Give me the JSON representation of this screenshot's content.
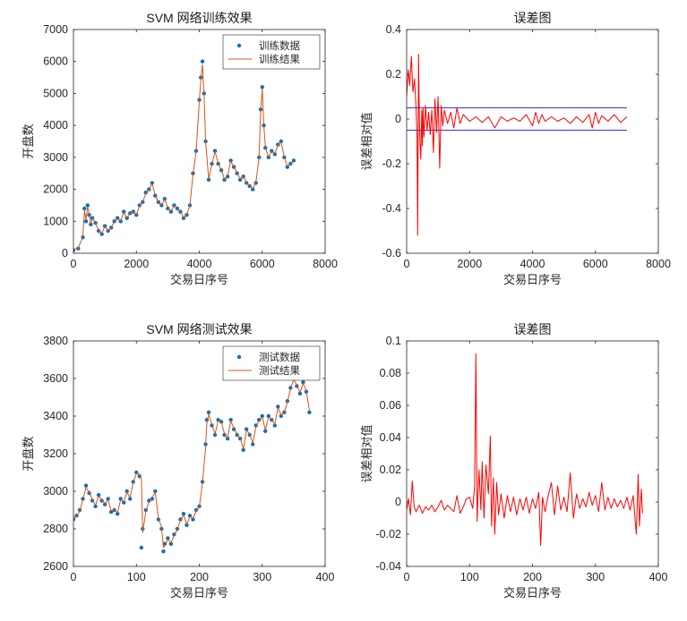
{
  "chart_data": [
    {
      "id": "train-fit",
      "type": "line",
      "title": "SVM 网络训练效果",
      "xlabel": "交易日序号",
      "ylabel": "开盘数",
      "xlim": [
        0,
        8000
      ],
      "ylim": [
        0,
        7000
      ],
      "xticks": [
        0,
        2000,
        4000,
        6000,
        8000
      ],
      "yticks": [
        0,
        1000,
        2000,
        3000,
        4000,
        5000,
        6000,
        7000
      ],
      "grid": false,
      "legend": "top-right",
      "series": [
        {
          "name": "训练数据",
          "style": "markers",
          "color": "#0072bd",
          "x": [
            0,
            150,
            300,
            350,
            400,
            450,
            500,
            550,
            600,
            700,
            800,
            900,
            1000,
            1100,
            1200,
            1300,
            1400,
            1500,
            1600,
            1700,
            1800,
            1900,
            2000,
            2100,
            2200,
            2300,
            2400,
            2500,
            2600,
            2700,
            2800,
            2900,
            3000,
            3100,
            3200,
            3300,
            3400,
            3500,
            3600,
            3700,
            3800,
            3900,
            4000,
            4050,
            4100,
            4150,
            4200,
            4300,
            4400,
            4500,
            4600,
            4700,
            4800,
            4900,
            5000,
            5100,
            5200,
            5300,
            5400,
            5500,
            5600,
            5700,
            5800,
            5900,
            5950,
            6000,
            6050,
            6100,
            6200,
            6300,
            6400,
            6500,
            6600,
            6700,
            6800,
            6900,
            7000
          ],
          "y": [
            100,
            150,
            500,
            1400,
            1000,
            1500,
            1200,
            900,
            1100,
            950,
            700,
            600,
            850,
            700,
            800,
            1000,
            1100,
            1000,
            1300,
            1100,
            1250,
            1300,
            1200,
            1500,
            1600,
            1900,
            2000,
            2200,
            1800,
            1600,
            1500,
            1700,
            1400,
            1300,
            1500,
            1400,
            1300,
            1100,
            1200,
            1500,
            2500,
            3200,
            4800,
            5500,
            6000,
            5000,
            3500,
            2300,
            2800,
            3200,
            2800,
            2600,
            2300,
            2400,
            2900,
            2700,
            2500,
            2300,
            2400,
            2200,
            2100,
            2000,
            2200,
            3000,
            4500,
            5200,
            4000,
            3300,
            3000,
            3200,
            3100,
            3400,
            3500,
            3000,
            2700,
            2800,
            2900
          ]
        },
        {
          "name": "训练结果",
          "style": "line",
          "color": "#d95319",
          "x": [
            0,
            150,
            300,
            350,
            400,
            450,
            500,
            550,
            600,
            700,
            800,
            900,
            1000,
            1100,
            1200,
            1300,
            1400,
            1500,
            1600,
            1700,
            1800,
            1900,
            2000,
            2100,
            2200,
            2300,
            2400,
            2500,
            2600,
            2700,
            2800,
            2900,
            3000,
            3100,
            3200,
            3300,
            3400,
            3500,
            3600,
            3700,
            3800,
            3900,
            4000,
            4050,
            4100,
            4150,
            4200,
            4300,
            4400,
            4500,
            4600,
            4700,
            4800,
            4900,
            5000,
            5100,
            5200,
            5300,
            5400,
            5500,
            5600,
            5700,
            5800,
            5900,
            5950,
            6000,
            6050,
            6100,
            6200,
            6300,
            6400,
            6500,
            6600,
            6700,
            6800,
            6900,
            7000
          ],
          "y": [
            120,
            160,
            520,
            1350,
            1050,
            1450,
            1220,
            920,
            1080,
            960,
            720,
            620,
            840,
            710,
            810,
            990,
            1090,
            1010,
            1280,
            1110,
            1240,
            1290,
            1210,
            1480,
            1590,
            1880,
            1990,
            2180,
            1820,
            1610,
            1510,
            1690,
            1410,
            1310,
            1490,
            1410,
            1310,
            1120,
            1210,
            1490,
            2480,
            3180,
            4750,
            5450,
            5900,
            5000,
            3520,
            2320,
            2790,
            3180,
            2810,
            2610,
            2320,
            2410,
            2880,
            2710,
            2510,
            2320,
            2410,
            2210,
            2110,
            2010,
            2210,
            2980,
            4450,
            5150,
            4020,
            3320,
            3010,
            3190,
            3110,
            3390,
            3480,
            3010,
            2720,
            2790,
            2890
          ]
        }
      ]
    },
    {
      "id": "train-error",
      "type": "line",
      "title": "误差图",
      "xlabel": "交易日序号",
      "ylabel": "误差相对值",
      "xlim": [
        0,
        8000
      ],
      "ylim": [
        -0.6,
        0.4
      ],
      "xticks": [
        0,
        2000,
        4000,
        6000,
        8000
      ],
      "yticks": [
        -0.6,
        -0.4,
        -0.2,
        0,
        0.2,
        0.4
      ],
      "grid": false,
      "legend": "none",
      "reference_lines": {
        "values": [
          0.05,
          -0.05
        ],
        "x_range": [
          0,
          7000
        ],
        "color": "#3333dd"
      },
      "series": [
        {
          "style": "line",
          "color": "#ff0000",
          "x": [
            0,
            50,
            100,
            150,
            200,
            250,
            300,
            330,
            350,
            380,
            400,
            420,
            450,
            480,
            500,
            520,
            550,
            600,
            650,
            700,
            750,
            800,
            850,
            900,
            950,
            1000,
            1050,
            1100,
            1150,
            1200,
            1300,
            1400,
            1500,
            1600,
            1700,
            1800,
            2000,
            2200,
            2400,
            2600,
            2800,
            3000,
            3200,
            3400,
            3600,
            3800,
            4000,
            4100,
            4200,
            4300,
            4400,
            4600,
            4800,
            5000,
            5200,
            5400,
            5600,
            5800,
            5900,
            6000,
            6100,
            6200,
            6400,
            6600,
            6800,
            7000
          ],
          "y": [
            0.1,
            0.22,
            0.15,
            0.28,
            0.12,
            0.18,
            0.05,
            -0.08,
            -0.52,
            0.29,
            0.02,
            -0.1,
            -0.18,
            0.04,
            -0.12,
            0.05,
            -0.08,
            0.06,
            -0.05,
            0.03,
            -0.07,
            0.04,
            -0.15,
            0.09,
            -0.06,
            0.1,
            -0.22,
            0.06,
            -0.03,
            0.04,
            -0.02,
            0.03,
            -0.04,
            0.05,
            -0.02,
            0.02,
            -0.01,
            0.01,
            -0.015,
            0.01,
            -0.04,
            0.01,
            -0.01,
            0.005,
            -0.01,
            0.02,
            -0.03,
            0.03,
            -0.02,
            0.02,
            -0.01,
            0.01,
            -0.01,
            0.005,
            -0.02,
            0.01,
            -0.015,
            0.02,
            -0.04,
            0.03,
            -0.02,
            0.015,
            -0.01,
            0.02,
            -0.015,
            0.01
          ]
        }
      ]
    },
    {
      "id": "test-fit",
      "type": "line",
      "title": "SVM 网络测试效果",
      "xlabel": "交易日序号",
      "ylabel": "开盘数",
      "xlim": [
        0,
        400
      ],
      "ylim": [
        2600,
        3800
      ],
      "xticks": [
        0,
        100,
        200,
        300,
        400
      ],
      "yticks": [
        2600,
        2800,
        3000,
        3200,
        3400,
        3600,
        3800
      ],
      "grid": false,
      "legend": "top-right",
      "series": [
        {
          "name": "测试数据",
          "style": "markers",
          "color": "#0072bd",
          "x": [
            0,
            5,
            10,
            15,
            20,
            25,
            30,
            35,
            40,
            45,
            50,
            55,
            60,
            65,
            70,
            75,
            80,
            85,
            90,
            95,
            100,
            105,
            108,
            110,
            115,
            120,
            125,
            130,
            135,
            140,
            143,
            145,
            150,
            155,
            160,
            165,
            170,
            175,
            180,
            185,
            190,
            195,
            200,
            205,
            210,
            212,
            215,
            220,
            225,
            230,
            235,
            240,
            245,
            250,
            255,
            260,
            265,
            270,
            275,
            280,
            285,
            290,
            295,
            300,
            305,
            310,
            315,
            320,
            325,
            330,
            335,
            340,
            345,
            350,
            355,
            360,
            365,
            370,
            375
          ],
          "y": [
            2850,
            2870,
            2900,
            2960,
            3030,
            2990,
            2950,
            2920,
            2980,
            2950,
            2930,
            2960,
            2890,
            2900,
            2880,
            2960,
            2940,
            3000,
            2960,
            3050,
            3100,
            3080,
            2700,
            2800,
            2900,
            2950,
            2960,
            3000,
            2850,
            2800,
            2680,
            2720,
            2750,
            2720,
            2770,
            2800,
            2850,
            2880,
            2820,
            2870,
            2850,
            2900,
            2920,
            3050,
            3250,
            3380,
            3420,
            3350,
            3300,
            3380,
            3370,
            3300,
            3280,
            3380,
            3330,
            3300,
            3280,
            3220,
            3330,
            3300,
            3250,
            3350,
            3380,
            3400,
            3320,
            3400,
            3380,
            3350,
            3450,
            3400,
            3420,
            3480,
            3550,
            3600,
            3560,
            3520,
            3580,
            3530,
            3420
          ]
        },
        {
          "name": "测试结果",
          "style": "line",
          "color": "#d95319",
          "x": [
            0,
            5,
            10,
            15,
            20,
            25,
            30,
            35,
            40,
            45,
            50,
            55,
            60,
            65,
            70,
            75,
            80,
            85,
            90,
            95,
            100,
            105,
            108,
            110,
            115,
            120,
            125,
            130,
            135,
            140,
            143,
            145,
            150,
            155,
            160,
            165,
            170,
            175,
            180,
            185,
            190,
            195,
            200,
            205,
            210,
            212,
            215,
            220,
            225,
            230,
            235,
            240,
            245,
            250,
            255,
            260,
            265,
            270,
            275,
            280,
            285,
            290,
            295,
            300,
            305,
            310,
            315,
            320,
            325,
            330,
            335,
            340,
            345,
            350,
            355,
            360,
            365,
            370,
            375
          ],
          "y": [
            2860,
            2865,
            2895,
            2955,
            3020,
            2995,
            2955,
            2925,
            2975,
            2955,
            2935,
            2955,
            2895,
            2905,
            2885,
            2955,
            2945,
            2995,
            2965,
            3045,
            3095,
            3090,
            3060,
            2780,
            2890,
            2945,
            2965,
            2995,
            2860,
            2810,
            2700,
            2710,
            2745,
            2725,
            2765,
            2795,
            2845,
            2875,
            2825,
            2865,
            2855,
            2895,
            2915,
            3040,
            3230,
            3360,
            3410,
            3355,
            3305,
            3375,
            3370,
            3305,
            3285,
            3375,
            3335,
            3305,
            3285,
            3225,
            3325,
            3305,
            3255,
            3345,
            3375,
            3395,
            3325,
            3395,
            3385,
            3355,
            3445,
            3405,
            3420,
            3475,
            3545,
            3595,
            3565,
            3525,
            3575,
            3535,
            3430
          ]
        }
      ]
    },
    {
      "id": "test-error",
      "type": "line",
      "title": "误差图",
      "xlabel": "交易日序号",
      "ylabel": "误差相对值",
      "xlim": [
        0,
        400
      ],
      "ylim": [
        -0.04,
        0.1
      ],
      "xticks": [
        0,
        100,
        200,
        300,
        400
      ],
      "yticks": [
        -0.04,
        -0.02,
        0,
        0.02,
        0.04,
        0.06,
        0.08,
        0.1
      ],
      "grid": false,
      "legend": "none",
      "series": [
        {
          "style": "line",
          "color": "#ff0000",
          "x": [
            0,
            3,
            6,
            9,
            12,
            15,
            20,
            25,
            30,
            35,
            40,
            45,
            50,
            55,
            60,
            65,
            70,
            75,
            80,
            85,
            90,
            95,
            100,
            105,
            108,
            110,
            112,
            115,
            118,
            120,
            123,
            126,
            130,
            133,
            135,
            138,
            140,
            143,
            146,
            150,
            155,
            160,
            165,
            170,
            175,
            180,
            185,
            190,
            195,
            200,
            205,
            210,
            213,
            216,
            220,
            225,
            230,
            235,
            240,
            245,
            250,
            255,
            260,
            265,
            270,
            275,
            280,
            285,
            290,
            295,
            300,
            305,
            310,
            315,
            320,
            325,
            330,
            335,
            340,
            345,
            350,
            355,
            360,
            365,
            368,
            370,
            373,
            375
          ],
          "y": [
            -0.005,
            0.002,
            -0.008,
            0.013,
            -0.003,
            -0.006,
            -0.002,
            -0.007,
            -0.003,
            -0.005,
            -0.002,
            -0.006,
            -0.003,
            0.001,
            -0.005,
            -0.002,
            -0.004,
            -0.006,
            0.004,
            -0.007,
            -0.003,
            0.002,
            0.003,
            -0.004,
            0.01,
            0.092,
            -0.012,
            0.02,
            -0.005,
            0.025,
            -0.01,
            0.023,
            0.005,
            0.041,
            -0.015,
            0.015,
            -0.02,
            0.012,
            -0.008,
            0.005,
            -0.01,
            0.004,
            -0.006,
            0.003,
            -0.008,
            0.002,
            -0.005,
            0.003,
            -0.007,
            0.002,
            -0.004,
            0.006,
            -0.027,
            0.003,
            -0.006,
            0.004,
            0.012,
            -0.008,
            0.01,
            -0.005,
            0.003,
            -0.006,
            0.018,
            -0.01,
            0.005,
            -0.004,
            0.002,
            -0.003,
            0.006,
            -0.002,
            0.004,
            -0.006,
            0.012,
            -0.005,
            0.003,
            -0.004,
            0.002,
            -0.003,
            0.001,
            -0.004,
            0.003,
            -0.005,
            0.004,
            -0.02,
            0.017,
            -0.015,
            0.008,
            -0.007
          ]
        }
      ]
    }
  ]
}
